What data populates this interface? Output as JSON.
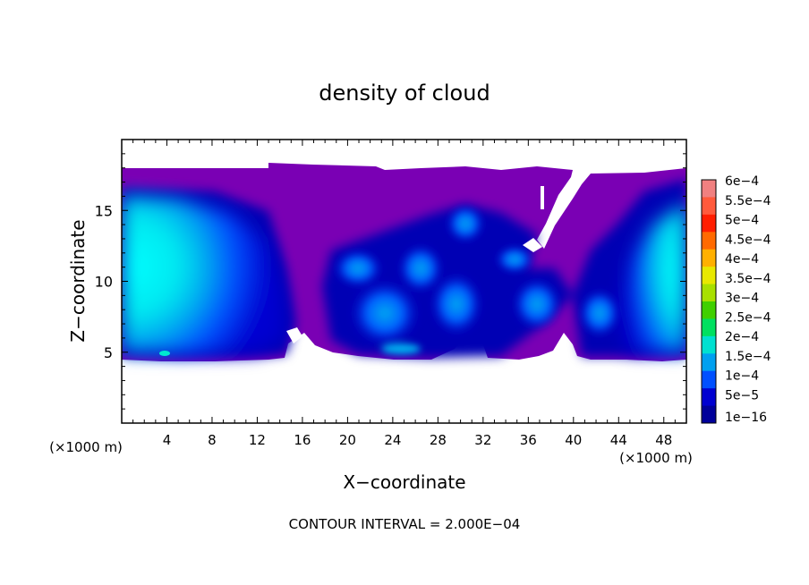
{
  "chart_data": {
    "type": "heatmap",
    "title": "density of cloud",
    "xlabel": "X−coordinate",
    "ylabel": "Z−coordinate",
    "x_unit_label": "(×1000 m)",
    "y_unit_label": "(×1000 m)",
    "xlim": [
      0,
      50
    ],
    "ylim": [
      0,
      20
    ],
    "x_ticks": [
      "4",
      "8",
      "12",
      "16",
      "20",
      "24",
      "28",
      "32",
      "36",
      "40",
      "44",
      "48"
    ],
    "y_ticks": [
      "5",
      "10",
      "15"
    ],
    "footer": "CONTOUR INTERVAL = 2.000E−04",
    "colorbar": {
      "labels": [
        "6e−4",
        "5.5e−4",
        "5e−4",
        "4.5e−4",
        "4e−4",
        "3.5e−4",
        "3e−4",
        "2.5e−4",
        "2e−4",
        "1.5e−4",
        "1e−4",
        "5e−5",
        "1e−16"
      ],
      "colors": [
        "#f08080",
        "#ff5a3c",
        "#ff1e00",
        "#ff6a00",
        "#ffb000",
        "#e8e800",
        "#a8e000",
        "#40d000",
        "#00e060",
        "#00e0d0",
        "#00a0f0",
        "#0050ff",
        "#0000d0",
        "#00009a"
      ]
    },
    "cloud_layer": {
      "base_z": 4.8,
      "top_z": 17.8,
      "notes": "1e-16 level fills most of layer; cyan cores at x 0-12 and 44-50 reaching ~1.5e-4 to 2e-4; blue patches x 16-40"
    },
    "cores": [
      {
        "x": [
          0,
          13
        ],
        "z": [
          5,
          16
        ],
        "level": "1.5e−4"
      },
      {
        "x": [
          42,
          50
        ],
        "z": [
          5,
          16
        ],
        "level": "1.5e−4"
      }
    ]
  }
}
